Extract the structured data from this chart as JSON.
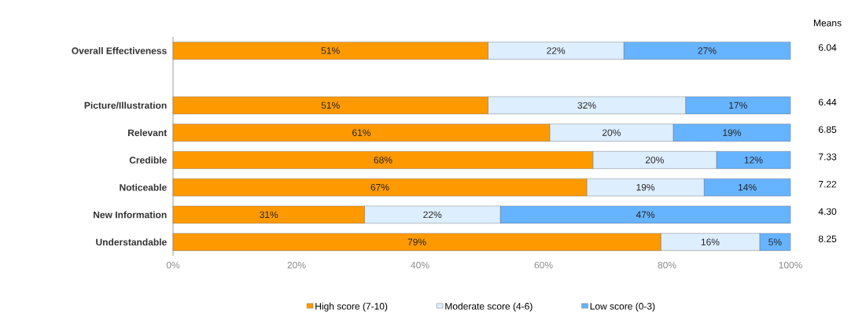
{
  "chart_data": {
    "type": "bar",
    "orientation": "horizontal",
    "stacked": true,
    "categories": [
      "Overall Effectiveness",
      null,
      "Picture/Illustration",
      "Relevant",
      "Credible",
      "Noticeable",
      "New Information",
      "Understandable"
    ],
    "series": [
      {
        "name": "High score (7-10)",
        "color": "#ff9900",
        "values": [
          51,
          null,
          51,
          61,
          68,
          67,
          31,
          79
        ],
        "value_labels": [
          "51%",
          null,
          "51%",
          "61%",
          "68%",
          "67%",
          "31%",
          "79%"
        ]
      },
      {
        "name": "Moderate score (4-6)",
        "color": "#ddeeff",
        "values": [
          22,
          null,
          32,
          20,
          20,
          19,
          22,
          16
        ],
        "value_labels": [
          "22%",
          null,
          "32%",
          "20%",
          "20%",
          "19%",
          "22%",
          "16%"
        ]
      },
      {
        "name": "Low score (0-3)",
        "color": "#66b3ff",
        "values": [
          27,
          null,
          17,
          19,
          12,
          14,
          47,
          5
        ],
        "value_labels": [
          "27%",
          null,
          "17%",
          "19%",
          "12%",
          "14%",
          "47%",
          "5%"
        ]
      }
    ],
    "xlim": [
      0,
      100
    ],
    "xticks": [
      {
        "value": 0,
        "label": "0%"
      },
      {
        "value": 20,
        "label": "20%"
      },
      {
        "value": 40,
        "label": "40%"
      },
      {
        "value": 60,
        "label": "60%"
      },
      {
        "value": 80,
        "label": "80%"
      },
      {
        "value": 100,
        "label": "100%"
      }
    ],
    "legend": "bottom",
    "grid": false,
    "annotations": [
      "Means",
      "6.04",
      "6.44",
      "6.85",
      "7.33",
      "7.22",
      "4.30",
      "8.25"
    ]
  }
}
